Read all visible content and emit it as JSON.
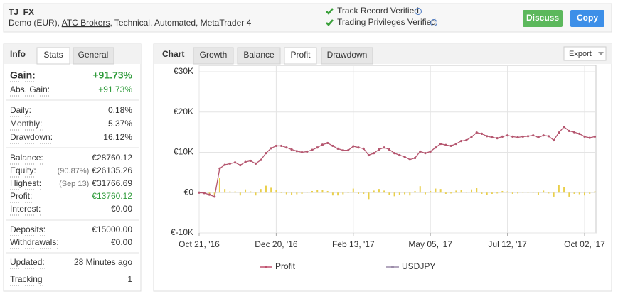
{
  "header": {
    "title": "TJ_FX",
    "subtitle_parts": [
      "Demo (EUR), ",
      "ATC Brokers",
      ", Technical, Automated, MetaTrader 4"
    ],
    "verified": [
      "Track Record Verified",
      "Trading Privileges Verified"
    ],
    "buttons": [
      "Discuss",
      "Copy"
    ]
  },
  "left_panel": {
    "title": "Info",
    "tabs": [
      "Stats",
      "General"
    ],
    "groups": [
      [
        {
          "label": "Gain:",
          "value": "+91.73%",
          "color": "#2e9b3a"
        },
        {
          "label": "Abs. Gain:",
          "value": "+91.73%",
          "color": "#2e9b3a"
        }
      ],
      [
        {
          "label": "Daily:",
          "value": "0.18%"
        },
        {
          "label": "Monthly:",
          "value": "5.37%"
        },
        {
          "label": "Drawdown:",
          "value": "16.12%"
        }
      ],
      [
        {
          "label": "Balance:",
          "value": "€28760.12"
        },
        {
          "label": "Equity:",
          "note": "(90.87%)",
          "value": "€26135.26"
        },
        {
          "label": "Highest:",
          "note": "(Sep 13)",
          "value": "€31766.69"
        },
        {
          "label": "Profit:",
          "value": "€13760.12",
          "color": "#2e9b3a"
        },
        {
          "label": "Interest:",
          "value": "€0.00"
        }
      ],
      [
        {
          "label": "Deposits:",
          "value": "€15000.00"
        },
        {
          "label": "Withdrawals:",
          "value": "€0.00"
        }
      ],
      [
        {
          "label": "Updated:",
          "value": "28 Minutes ago"
        },
        {
          "label": "Tracking",
          "value": "1"
        }
      ]
    ]
  },
  "right_panel": {
    "title": "Chart",
    "tabs": [
      "Growth",
      "Balance",
      "Profit",
      "Drawdown"
    ],
    "active_tab": 2,
    "export": "Export"
  },
  "chart_data": {
    "type": "line",
    "categories": [
      "Oct 21, '16",
      null,
      null,
      null,
      null,
      null,
      null,
      null,
      null,
      null,
      null,
      null,
      null,
      null,
      null,
      "Dec 20, '16",
      null,
      null,
      null,
      null,
      null,
      null,
      null,
      null,
      null,
      null,
      null,
      null,
      null,
      null,
      "Feb 13, '17",
      null,
      null,
      null,
      null,
      null,
      null,
      null,
      null,
      null,
      null,
      null,
      null,
      null,
      null,
      "May 05, '17",
      null,
      null,
      null,
      null,
      null,
      null,
      null,
      null,
      null,
      null,
      null,
      null,
      null,
      null,
      "Jul 12, '17",
      null,
      null,
      null,
      null,
      null,
      null,
      null,
      null,
      null,
      null,
      null,
      null,
      null,
      null,
      "Oct 02, '17",
      null,
      null
    ],
    "series": [
      {
        "color": "#b5566f",
        "values": [
          0,
          -100,
          -500,
          -1000,
          6000,
          6900,
          7200,
          7500,
          6800,
          7600,
          7900,
          7200,
          8100,
          9800,
          11000,
          11600,
          11600,
          11200,
          10700,
          10300,
          10000,
          10200,
          10600,
          11200,
          11900,
          12300,
          11600,
          10900,
          10500,
          10500,
          11500,
          11200,
          10900,
          9300,
          9800,
          10700,
          11200,
          10700,
          9800,
          9300,
          8900,
          8200,
          8600,
          10200,
          9800,
          10200,
          11200,
          12100,
          11800,
          11600,
          12100,
          12800,
          13000,
          13800,
          14900,
          14600,
          14000,
          13700,
          13500,
          13900,
          14200,
          13900,
          13700,
          13900,
          14000,
          14200,
          13700,
          14200,
          14000,
          13000,
          14900,
          16300,
          15300,
          15000,
          14600,
          13900,
          13600,
          13900
        ]
      }
    ],
    "bars": {
      "color": "#e9cf4a",
      "values": [
        0,
        -200,
        -400,
        -600,
        3700,
        900,
        300,
        300,
        -700,
        800,
        300,
        -700,
        900,
        1700,
        1200,
        600,
        0,
        -400,
        -500,
        -400,
        -300,
        200,
        400,
        600,
        700,
        400,
        -700,
        -700,
        -400,
        0,
        1000,
        -300,
        -300,
        -1600,
        500,
        900,
        500,
        -500,
        -900,
        -500,
        -400,
        -700,
        400,
        1600,
        -400,
        400,
        1000,
        900,
        -300,
        -200,
        500,
        700,
        200,
        800,
        1100,
        -300,
        -600,
        -300,
        -200,
        400,
        300,
        -300,
        -200,
        200,
        100,
        200,
        -500,
        500,
        -200,
        -1000,
        1900,
        1400,
        -1000,
        -300,
        -400,
        -700,
        -300,
        300
      ]
    },
    "legend": [
      {
        "name": "Profit",
        "color": "#c0506e"
      },
      {
        "name": "USDJPY",
        "color": "#9a8aa8"
      }
    ],
    "ylim": [
      -10000,
      30000
    ],
    "yticks": [
      {
        "value": -10000,
        "label": "€-10K"
      },
      {
        "value": 0,
        "label": "€0"
      },
      {
        "value": 10000,
        "label": "€10K"
      },
      {
        "value": 20000,
        "label": "€20K"
      },
      {
        "value": 30000,
        "label": "€30K"
      }
    ],
    "grid": true
  }
}
